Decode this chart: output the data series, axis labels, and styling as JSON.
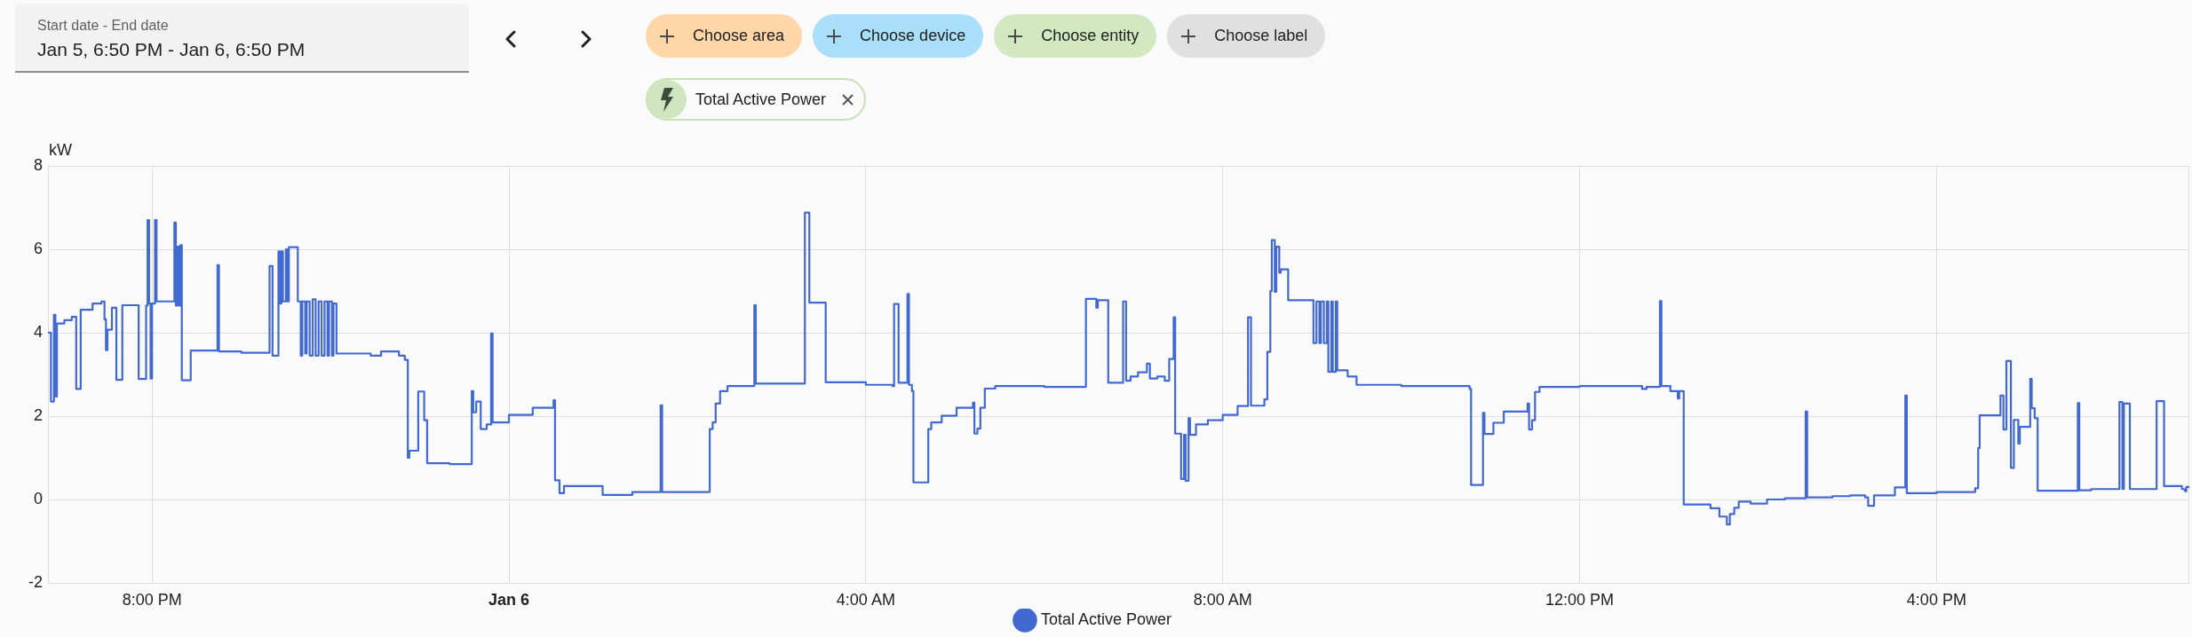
{
  "chart_data": [
    {
      "type": "other",
      "annotations": [
        "Start date - End date",
        "Jan 5, 6:50 PM - Jan 6, 6:50 PM",
        "Choose area",
        "Choose device",
        "Choose entity",
        "Choose label",
        "Total Active Power"
      ]
    },
    {
      "type": "step",
      "ylabel": "kW",
      "x": [
        "--01-05T18:50",
        "--01-05T18:52",
        "--01-05T18:54",
        "--01-05T18:55",
        "--01-05T18:56",
        "--01-05T19:01",
        "--01-05T19:06",
        "--01-05T19:09",
        "--01-05T19:12",
        "--01-05T19:20",
        "--01-05T19:26",
        "--01-05T19:28",
        "--01-05T19:29",
        "--01-05T19:30",
        "--01-05T19:33",
        "--01-05T19:36",
        "--01-05T19:40",
        "--01-05T19:51",
        "--01-05T19:56",
        "--01-05T19:57",
        "--01-05T19:58",
        "--01-05T19:59",
        "--01-05T20:00",
        "--01-05T20:02",
        "--01-05T20:03",
        "--01-05T20:15",
        "--01-05T20:16",
        "--01-05T20:17",
        "--01-05T20:18",
        "--01-05T20:19",
        "--01-05T20:20",
        "--01-05T20:26",
        "--01-05T20:44",
        "--01-05T20:45",
        "--01-05T21:00",
        "--01-05T21:19",
        "--01-05T21:21",
        "--01-05T21:25",
        "--01-05T21:26",
        "--01-05T21:27",
        "--01-05T21:28",
        "--01-05T21:30",
        "--01-05T21:31",
        "--01-05T21:32",
        "--01-05T21:38",
        "--01-05T21:40",
        "--01-05T21:41",
        "--01-05T21:43",
        "--01-05T21:44",
        "--01-05T21:46",
        "--01-05T21:48",
        "--01-05T21:50",
        "--01-05T21:52",
        "--01-05T21:54",
        "--01-05T21:56",
        "--01-05T21:58",
        "--01-05T21:59",
        "--01-05T22:01",
        "--01-05T22:02",
        "--01-05T22:04",
        "--01-05T22:27",
        "--01-05T22:34",
        "--01-05T22:46",
        "--01-05T22:50",
        "--01-05T22:52",
        "--01-05T22:53",
        "--01-05T22:59",
        "--01-05T23:03",
        "--01-05T23:05",
        "--01-05T23:20",
        "--01-05T23:35",
        "--01-05T23:36",
        "--01-05T23:38",
        "--01-05T23:41",
        "--01-05T23:45",
        "--01-05T23:48",
        "--01-05T23:49",
        "--01-06T00:00",
        "--01-06T00:16",
        "--01-06T00:30",
        "--01-06T00:31",
        "--01-06T00:34",
        "--01-06T00:37",
        "--01-06T01:03",
        "--01-06T01:23",
        "--01-06T01:42",
        "--01-06T01:43",
        "--01-06T02:15",
        "--01-06T02:17",
        "--01-06T02:19",
        "--01-06T02:22",
        "--01-06T02:27",
        "--01-06T02:45",
        "--01-06T02:46",
        "--01-06T03:19",
        "--01-06T03:22",
        "--01-06T03:33",
        "--01-06T04:00",
        "--01-06T04:18",
        "--01-06T04:19",
        "--01-06T04:22",
        "--01-06T04:28",
        "--01-06T04:29",
        "--01-06T04:31",
        "--01-06T04:32",
        "--01-06T04:42",
        "--01-06T04:44",
        "--01-06T04:51",
        "--01-06T05:01",
        "--01-06T05:12",
        "--01-06T05:13",
        "--01-06T05:15",
        "--01-06T05:17",
        "--01-06T05:20",
        "--01-06T05:27",
        "--01-06T06:00",
        "--01-06T06:28",
        "--01-06T06:35",
        "--01-06T06:36",
        "--01-06T06:43",
        "--01-06T06:53",
        "--01-06T06:55",
        "--01-06T06:58",
        "--01-06T07:03",
        "--01-06T07:09",
        "--01-06T07:11",
        "--01-06T07:16",
        "--01-06T07:21",
        "--01-06T07:24",
        "--01-06T07:27",
        "--01-06T07:28",
        "--01-06T07:32",
        "--01-06T07:34",
        "--01-06T07:35",
        "--01-06T07:37",
        "--01-06T07:38",
        "--01-06T07:42",
        "--01-06T07:50",
        "--01-06T08:00",
        "--01-06T08:10",
        "--01-06T08:17",
        "--01-06T08:19",
        "--01-06T08:28",
        "--01-06T08:30",
        "--01-06T08:32",
        "--01-06T08:33",
        "--01-06T08:35",
        "--01-06T08:36",
        "--01-06T08:38",
        "--01-06T08:39",
        "--01-06T08:44",
        "--01-06T09:01",
        "--01-06T09:03",
        "--01-06T09:05",
        "--01-06T09:06",
        "--01-06T09:08",
        "--01-06T09:10",
        "--01-06T09:11",
        "--01-06T09:13",
        "--01-06T09:14",
        "--01-06T09:16",
        "--01-06T09:17",
        "--01-06T09:24",
        "--01-06T09:30",
        "--01-06T10:00",
        "--01-06T10:46",
        "--01-06T10:47",
        "--01-06T10:55",
        "--01-06T10:56",
        "--01-06T11:02",
        "--01-06T11:09",
        "--01-06T11:25",
        "--01-06T11:26",
        "--01-06T11:28",
        "--01-06T11:30",
        "--01-06T11:33",
        "--01-06T12:00",
        "--01-06T12:42",
        "--01-06T12:45",
        "--01-06T12:54",
        "--01-06T12:55",
        "--01-06T13:01",
        "--01-06T13:06",
        "--01-06T13:07",
        "--01-06T13:10",
        "--01-06T13:28",
        "--01-06T13:34",
        "--01-06T13:39",
        "--01-06T13:41",
        "--01-06T13:44",
        "--01-06T13:47",
        "--01-06T13:55",
        "--01-06T14:06",
        "--01-06T14:18",
        "--01-06T14:32",
        "--01-06T14:33",
        "--01-06T14:50",
        "--01-06T15:02",
        "--01-06T15:12",
        "--01-06T15:14",
        "--01-06T15:18",
        "--01-06T15:32",
        "--01-06T15:39",
        "--01-06T15:40",
        "--01-06T16:00",
        "--01-06T16:26",
        "--01-06T16:28",
        "--01-06T16:29",
        "--01-06T16:43",
        "--01-06T16:45",
        "--01-06T16:47",
        "--01-06T16:50",
        "--01-06T16:52",
        "--01-06T16:55",
        "--01-06T16:56",
        "--01-06T17:03",
        "--01-06T17:04",
        "--01-06T17:06",
        "--01-06T17:08",
        "--01-06T17:35",
        "--01-06T17:36",
        "--01-06T17:44",
        "--01-06T18:03",
        "--01-06T18:05",
        "--01-06T18:06",
        "--01-06T18:10",
        "--01-06T18:28",
        "--01-06T18:33",
        "--01-06T18:45",
        "--01-06T18:47",
        "--01-06T18:48",
        "--01-06T18:50"
      ],
      "series": [
        {
          "name": "Total Active Power",
          "color": "#4269d0",
          "values": [
            4.0,
            2.35,
            4.43,
            2.47,
            4.22,
            4.3,
            4.38,
            2.65,
            4.55,
            4.7,
            4.75,
            4.32,
            3.58,
            4.07,
            4.6,
            2.87,
            4.66,
            2.89,
            4.65,
            6.7,
            4.7,
            2.9,
            4.7,
            6.7,
            4.75,
            6.64,
            4.65,
            6.06,
            4.65,
            6.1,
            2.86,
            3.57,
            5.62,
            3.55,
            3.52,
            5.6,
            3.45,
            5.95,
            4.7,
            5.95,
            4.75,
            6.0,
            4.75,
            6.05,
            4.75,
            3.45,
            4.75,
            3.5,
            4.75,
            3.45,
            4.8,
            3.45,
            4.75,
            3.45,
            4.75,
            3.45,
            4.75,
            3.45,
            4.7,
            3.5,
            3.45,
            3.55,
            3.45,
            3.35,
            1.0,
            1.17,
            2.59,
            1.9,
            0.87,
            0.85,
            2.6,
            2.09,
            2.35,
            1.69,
            1.8,
            3.98,
            1.85,
            2.03,
            2.2,
            2.38,
            0.46,
            0.15,
            0.32,
            0.11,
            0.18,
            2.26,
            0.18,
            1.69,
            1.85,
            2.3,
            2.6,
            2.72,
            4.66,
            2.78,
            6.88,
            4.72,
            2.81,
            2.75,
            2.72,
            4.69,
            2.8,
            4.93,
            2.75,
            2.6,
            0.41,
            1.69,
            1.85,
            2.01,
            2.2,
            2.32,
            1.58,
            1.7,
            2.2,
            2.66,
            2.72,
            2.7,
            4.81,
            4.6,
            4.78,
            2.8,
            4.75,
            2.85,
            2.95,
            3.05,
            3.26,
            2.9,
            2.95,
            2.85,
            3.37,
            4.37,
            1.58,
            0.49,
            1.55,
            0.45,
            1.95,
            1.55,
            1.8,
            1.9,
            2.03,
            2.24,
            4.37,
            2.25,
            2.4,
            3.54,
            5.0,
            6.22,
            4.98,
            6.06,
            5.44,
            5.52,
            4.78,
            3.75,
            4.75,
            3.75,
            4.75,
            3.75,
            4.75,
            3.06,
            4.75,
            3.06,
            4.75,
            3.1,
            2.95,
            2.75,
            2.72,
            2.65,
            0.35,
            2.08,
            1.57,
            1.84,
            2.11,
            2.3,
            1.68,
            1.9,
            2.58,
            2.7,
            2.72,
            2.65,
            2.7,
            4.76,
            2.72,
            2.6,
            2.42,
            2.6,
            -0.12,
            -0.21,
            -0.41,
            -0.6,
            -0.35,
            -0.2,
            -0.05,
            -0.1,
            0.0,
            0.03,
            2.11,
            0.05,
            0.08,
            0.1,
            0.05,
            -0.15,
            0.1,
            0.29,
            2.49,
            0.15,
            0.18,
            0.27,
            1.23,
            2.02,
            2.49,
            1.68,
            3.32,
            0.76,
            1.91,
            1.34,
            1.74,
            2.89,
            2.19,
            1.95,
            0.21,
            2.31,
            0.22,
            0.25,
            2.34,
            0.25,
            2.3,
            0.25,
            2.36,
            0.32,
            0.25,
            0.2,
            0.3,
            0.28
          ]
        }
      ],
      "xlim": [
        "--01-05T18:50",
        "--01-06T18:50"
      ],
      "xticks": [
        {
          "value": "--01-05T20:00",
          "label": "8:00 PM"
        },
        {
          "value": "--01-06T00:00",
          "label": "Jan 6"
        },
        {
          "value": "--01-06T04:00",
          "label": "4:00 AM"
        },
        {
          "value": "--01-06T08:00",
          "label": "8:00 AM"
        },
        {
          "value": "--01-06T12:00",
          "label": "12:00 PM"
        },
        {
          "value": "--01-06T16:00",
          "label": "4:00 PM"
        }
      ],
      "ylim": [
        -2,
        8
      ],
      "yticks": [
        -2,
        0,
        2,
        4,
        6,
        8
      ],
      "grid": true,
      "legend": "bottom"
    }
  ]
}
